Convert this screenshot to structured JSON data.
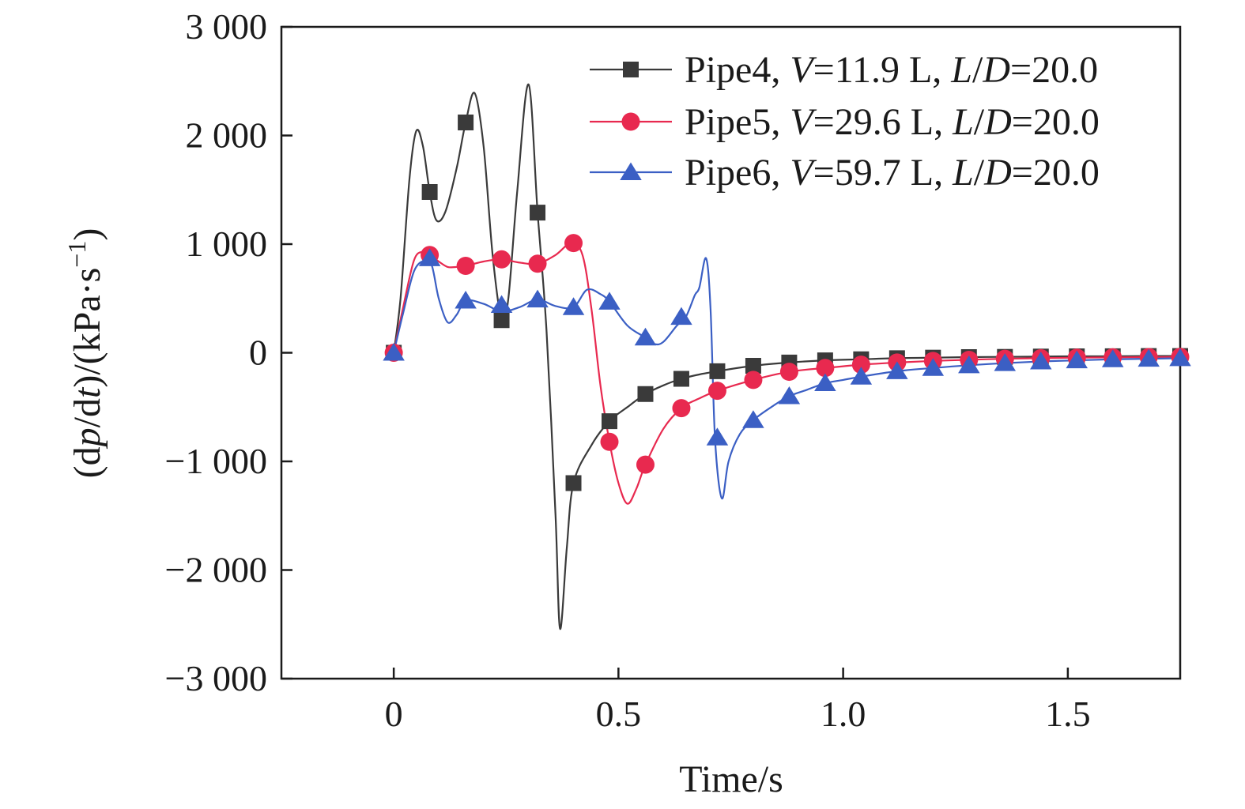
{
  "chart_data": {
    "type": "line",
    "xlabel": "Time/s",
    "ylabel": "(dp/dt)/(kPa·s⁻¹)",
    "xlim": [
      -0.25,
      1.75
    ],
    "ylim": [
      -3000,
      3000
    ],
    "xticks": [
      {
        "value": 0,
        "label": "0"
      },
      {
        "value": 0.5,
        "label": "0.5"
      },
      {
        "value": 1.0,
        "label": "1.0"
      },
      {
        "value": 1.5,
        "label": "1.5"
      }
    ],
    "yticks": [
      {
        "value": 3000,
        "label": "3 000"
      },
      {
        "value": 2000,
        "label": "2 000"
      },
      {
        "value": 1000,
        "label": "1 000"
      },
      {
        "value": 0,
        "label": "0"
      },
      {
        "value": -1000,
        "label": "−1 000"
      },
      {
        "value": -2000,
        "label": "−2 000"
      },
      {
        "value": -3000,
        "label": "−3 000"
      }
    ],
    "grid": false,
    "legend_position": "top-right",
    "series": [
      {
        "name": "Pipe4, V=11.9 L, L/D=20.0",
        "legend_parts": [
          "Pipe4, ",
          "V",
          "=11.9 L, ",
          "L",
          "/",
          "D",
          "=20.0"
        ],
        "color": "#3a3a3a",
        "marker": "square",
        "curve": [
          [
            0,
            0
          ],
          [
            0.015,
            500
          ],
          [
            0.035,
            1600
          ],
          [
            0.05,
            2040
          ],
          [
            0.065,
            1900
          ],
          [
            0.08,
            1480
          ],
          [
            0.095,
            1220
          ],
          [
            0.115,
            1300
          ],
          [
            0.14,
            1700
          ],
          [
            0.16,
            2120
          ],
          [
            0.18,
            2390
          ],
          [
            0.2,
            1900
          ],
          [
            0.22,
            900
          ],
          [
            0.24,
            300
          ],
          [
            0.255,
            500
          ],
          [
            0.275,
            1500
          ],
          [
            0.3,
            2470
          ],
          [
            0.32,
            1300
          ],
          [
            0.34,
            200
          ],
          [
            0.36,
            -1500
          ],
          [
            0.37,
            -2540
          ],
          [
            0.385,
            -1800
          ],
          [
            0.4,
            -1200
          ],
          [
            0.44,
            -850
          ],
          [
            0.48,
            -630
          ],
          [
            0.52,
            -500
          ],
          [
            0.56,
            -380
          ],
          [
            0.6,
            -300
          ],
          [
            0.64,
            -240
          ],
          [
            0.68,
            -200
          ],
          [
            0.72,
            -170
          ],
          [
            0.8,
            -120
          ],
          [
            0.88,
            -90
          ],
          [
            0.96,
            -70
          ],
          [
            1.04,
            -60
          ],
          [
            1.12,
            -50
          ],
          [
            1.2,
            -45
          ],
          [
            1.28,
            -40
          ],
          [
            1.36,
            -38
          ],
          [
            1.44,
            -35
          ],
          [
            1.52,
            -33
          ],
          [
            1.6,
            -32
          ],
          [
            1.68,
            -30
          ],
          [
            1.75,
            -30
          ]
        ],
        "markers": [
          [
            0,
            0
          ],
          [
            0.08,
            1480
          ],
          [
            0.16,
            2120
          ],
          [
            0.24,
            300
          ],
          [
            0.32,
            1290
          ],
          [
            0.4,
            -1200
          ],
          [
            0.48,
            -630
          ],
          [
            0.56,
            -380
          ],
          [
            0.64,
            -240
          ],
          [
            0.72,
            -170
          ],
          [
            0.8,
            -120
          ],
          [
            0.88,
            -90
          ],
          [
            0.96,
            -70
          ],
          [
            1.04,
            -60
          ],
          [
            1.12,
            -50
          ],
          [
            1.2,
            -45
          ],
          [
            1.28,
            -40
          ],
          [
            1.36,
            -38
          ],
          [
            1.44,
            -35
          ],
          [
            1.52,
            -33
          ],
          [
            1.6,
            -32
          ],
          [
            1.68,
            -30
          ],
          [
            1.75,
            -30
          ]
        ]
      },
      {
        "name": "Pipe5, V=29.6 L, L/D=20.0",
        "legend_parts": [
          "Pipe5, ",
          "V",
          "=29.6 L, ",
          "L",
          "/",
          "D",
          "=20.0"
        ],
        "color": "#e8294f",
        "marker": "circle",
        "curve": [
          [
            0,
            0
          ],
          [
            0.02,
            400
          ],
          [
            0.045,
            850
          ],
          [
            0.065,
            930
          ],
          [
            0.08,
            900
          ],
          [
            0.1,
            840
          ],
          [
            0.12,
            790
          ],
          [
            0.14,
            790
          ],
          [
            0.16,
            800
          ],
          [
            0.2,
            840
          ],
          [
            0.24,
            860
          ],
          [
            0.28,
            830
          ],
          [
            0.32,
            820
          ],
          [
            0.36,
            900
          ],
          [
            0.395,
            1010
          ],
          [
            0.42,
            900
          ],
          [
            0.44,
            400
          ],
          [
            0.46,
            -300
          ],
          [
            0.48,
            -820
          ],
          [
            0.5,
            -1200
          ],
          [
            0.52,
            -1390
          ],
          [
            0.54,
            -1250
          ],
          [
            0.56,
            -1030
          ],
          [
            0.6,
            -700
          ],
          [
            0.64,
            -510
          ],
          [
            0.68,
            -420
          ],
          [
            0.72,
            -350
          ],
          [
            0.8,
            -250
          ],
          [
            0.88,
            -175
          ],
          [
            0.96,
            -140
          ],
          [
            1.04,
            -110
          ],
          [
            1.12,
            -90
          ],
          [
            1.2,
            -75
          ],
          [
            1.28,
            -65
          ],
          [
            1.36,
            -55
          ],
          [
            1.44,
            -50
          ],
          [
            1.52,
            -45
          ],
          [
            1.6,
            -42
          ],
          [
            1.68,
            -40
          ],
          [
            1.75,
            -38
          ]
        ],
        "markers": [
          [
            0,
            0
          ],
          [
            0.08,
            900
          ],
          [
            0.16,
            800
          ],
          [
            0.24,
            860
          ],
          [
            0.32,
            820
          ],
          [
            0.4,
            1010
          ],
          [
            0.48,
            -820
          ],
          [
            0.56,
            -1030
          ],
          [
            0.64,
            -510
          ],
          [
            0.72,
            -350
          ],
          [
            0.8,
            -250
          ],
          [
            0.88,
            -175
          ],
          [
            0.96,
            -140
          ],
          [
            1.04,
            -110
          ],
          [
            1.12,
            -90
          ],
          [
            1.2,
            -75
          ],
          [
            1.28,
            -65
          ],
          [
            1.36,
            -55
          ],
          [
            1.44,
            -50
          ],
          [
            1.52,
            -45
          ],
          [
            1.6,
            -42
          ],
          [
            1.68,
            -40
          ],
          [
            1.75,
            -38
          ]
        ]
      },
      {
        "name": "Pipe6, V=59.7 L, L/D=20.0",
        "legend_parts": [
          "Pipe6, ",
          "V",
          "=59.7 L, ",
          "L",
          "/",
          "D",
          "=20.0"
        ],
        "color": "#3b5fc4",
        "marker": "triangle",
        "curve": [
          [
            0,
            0
          ],
          [
            0.02,
            350
          ],
          [
            0.045,
            750
          ],
          [
            0.07,
            850
          ],
          [
            0.085,
            800
          ],
          [
            0.1,
            500
          ],
          [
            0.12,
            280
          ],
          [
            0.14,
            350
          ],
          [
            0.16,
            480
          ],
          [
            0.2,
            450
          ],
          [
            0.24,
            380
          ],
          [
            0.28,
            420
          ],
          [
            0.32,
            490
          ],
          [
            0.36,
            430
          ],
          [
            0.4,
            420
          ],
          [
            0.43,
            580
          ],
          [
            0.46,
            540
          ],
          [
            0.48,
            470
          ],
          [
            0.52,
            250
          ],
          [
            0.56,
            140
          ],
          [
            0.58,
            80
          ],
          [
            0.6,
            100
          ],
          [
            0.63,
            250
          ],
          [
            0.65,
            330
          ],
          [
            0.67,
            530
          ],
          [
            0.68,
            600
          ],
          [
            0.695,
            870
          ],
          [
            0.705,
            400
          ],
          [
            0.715,
            -800
          ],
          [
            0.73,
            -1340
          ],
          [
            0.745,
            -1000
          ],
          [
            0.77,
            -750
          ],
          [
            0.8,
            -620
          ],
          [
            0.84,
            -500
          ],
          [
            0.88,
            -400
          ],
          [
            0.92,
            -340
          ],
          [
            0.96,
            -280
          ],
          [
            1.0,
            -250
          ],
          [
            1.04,
            -220
          ],
          [
            1.12,
            -170
          ],
          [
            1.2,
            -140
          ],
          [
            1.28,
            -115
          ],
          [
            1.36,
            -95
          ],
          [
            1.44,
            -80
          ],
          [
            1.52,
            -70
          ],
          [
            1.6,
            -60
          ],
          [
            1.68,
            -55
          ],
          [
            1.75,
            -50
          ]
        ],
        "markers": [
          [
            0,
            0
          ],
          [
            0.08,
            870
          ],
          [
            0.16,
            480
          ],
          [
            0.24,
            440
          ],
          [
            0.32,
            490
          ],
          [
            0.4,
            420
          ],
          [
            0.48,
            470
          ],
          [
            0.56,
            140
          ],
          [
            0.64,
            330
          ],
          [
            0.72,
            -780
          ],
          [
            0.8,
            -620
          ],
          [
            0.88,
            -400
          ],
          [
            0.96,
            -280
          ],
          [
            1.04,
            -220
          ],
          [
            1.12,
            -170
          ],
          [
            1.2,
            -140
          ],
          [
            1.28,
            -115
          ],
          [
            1.36,
            -95
          ],
          [
            1.44,
            -80
          ],
          [
            1.52,
            -70
          ],
          [
            1.6,
            -60
          ],
          [
            1.68,
            -55
          ],
          [
            1.75,
            -50
          ]
        ]
      }
    ]
  }
}
